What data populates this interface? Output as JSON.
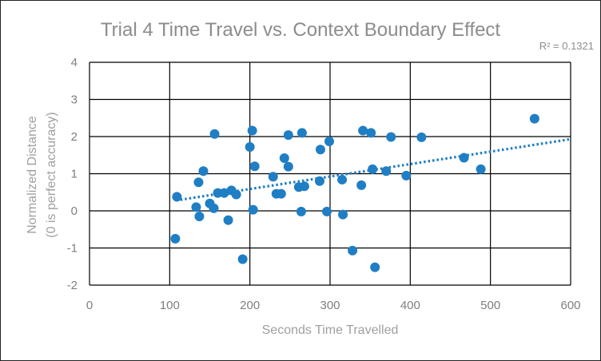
{
  "chart_data": {
    "type": "scatter",
    "title": "Trial 4 Time Travel vs. Context Boundary Effect",
    "annotation": "R² = 0.1321",
    "xlabel": "Seconds Time Travelled",
    "ylabel_lines": [
      "Normalized Distance",
      "(0 is perfect accuracy)"
    ],
    "xlim": [
      0,
      600
    ],
    "ylim": [
      -2,
      4
    ],
    "x_ticks": [
      0,
      100,
      200,
      300,
      400,
      500,
      600
    ],
    "y_ticks": [
      -2,
      -1,
      0,
      1,
      2,
      3,
      4
    ],
    "grid": true,
    "legend": "none",
    "marker_color": "#1f7ec4",
    "trendline": {
      "type": "linear",
      "x": [
        108,
        600
      ],
      "y": [
        0.28,
        1.93
      ],
      "style": "dotted"
    },
    "points": [
      {
        "x": 107,
        "y": -0.75
      },
      {
        "x": 109,
        "y": 0.38
      },
      {
        "x": 133,
        "y": 0.1
      },
      {
        "x": 136,
        "y": 0.77
      },
      {
        "x": 137,
        "y": -0.15
      },
      {
        "x": 142,
        "y": 1.07
      },
      {
        "x": 150,
        "y": 0.2
      },
      {
        "x": 155,
        "y": 0.07
      },
      {
        "x": 156,
        "y": 2.07
      },
      {
        "x": 160,
        "y": 0.48
      },
      {
        "x": 168,
        "y": 0.48
      },
      {
        "x": 173,
        "y": -0.25
      },
      {
        "x": 177,
        "y": 0.55
      },
      {
        "x": 183,
        "y": 0.44
      },
      {
        "x": 191,
        "y": -1.3
      },
      {
        "x": 200,
        "y": 1.72
      },
      {
        "x": 203,
        "y": 2.16
      },
      {
        "x": 204,
        "y": 0.03
      },
      {
        "x": 206,
        "y": 1.2
      },
      {
        "x": 229,
        "y": 0.92
      },
      {
        "x": 233,
        "y": 0.46
      },
      {
        "x": 239,
        "y": 0.46
      },
      {
        "x": 243,
        "y": 1.42
      },
      {
        "x": 248,
        "y": 2.04
      },
      {
        "x": 248,
        "y": 1.19
      },
      {
        "x": 261,
        "y": 0.64
      },
      {
        "x": 264,
        "y": -0.02
      },
      {
        "x": 265,
        "y": 2.1
      },
      {
        "x": 268,
        "y": 0.66
      },
      {
        "x": 287,
        "y": 0.8
      },
      {
        "x": 288,
        "y": 1.65
      },
      {
        "x": 296,
        "y": -0.02
      },
      {
        "x": 299,
        "y": 1.87
      },
      {
        "x": 315,
        "y": 0.84
      },
      {
        "x": 316,
        "y": -0.1
      },
      {
        "x": 328,
        "y": -1.07
      },
      {
        "x": 339,
        "y": 0.69
      },
      {
        "x": 341,
        "y": 2.16
      },
      {
        "x": 351,
        "y": 2.1
      },
      {
        "x": 353,
        "y": 1.12
      },
      {
        "x": 356,
        "y": -1.52
      },
      {
        "x": 370,
        "y": 1.07
      },
      {
        "x": 376,
        "y": 1.99
      },
      {
        "x": 395,
        "y": 0.95
      },
      {
        "x": 414,
        "y": 1.98
      },
      {
        "x": 467,
        "y": 1.43
      },
      {
        "x": 488,
        "y": 1.12
      },
      {
        "x": 555,
        "y": 2.48
      }
    ]
  }
}
